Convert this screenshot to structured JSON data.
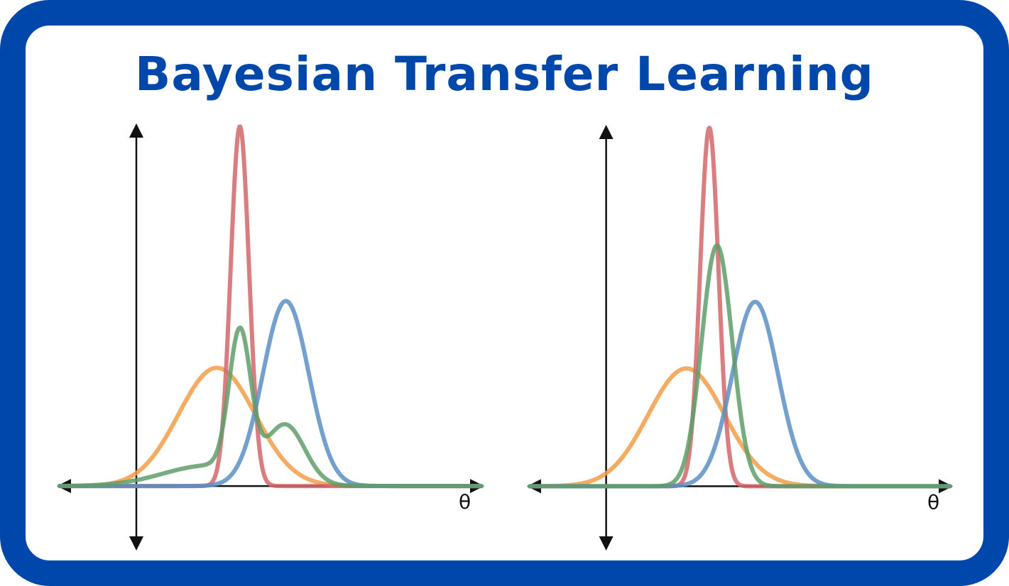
{
  "title": "Bayesian Transfer Learning",
  "colors": {
    "frame": "#0047AB",
    "title": "#0047AB",
    "orange": "#F39C45",
    "red": "#D4666A",
    "green": "#5E9E68",
    "blue": "#5A8FC4",
    "axis": "#111111"
  },
  "chart_data": [
    {
      "type": "line",
      "name": "left-panel",
      "xlabel": "θ",
      "xlim": [
        -1,
        4.5
      ],
      "ylim": [
        -0.6,
        3.5
      ],
      "series": [
        {
          "name": "orange",
          "color": "orange",
          "kind": "gaussian",
          "mu": 1.05,
          "sigma": 0.5,
          "amp": 1.15
        },
        {
          "name": "red",
          "color": "red",
          "kind": "gaussian",
          "mu": 1.35,
          "sigma": 0.12,
          "amp": 3.5
        },
        {
          "name": "blue",
          "color": "blue",
          "kind": "gaussian",
          "mu": 1.95,
          "sigma": 0.3,
          "amp": 1.8
        },
        {
          "name": "green",
          "color": "green",
          "kind": "mixture",
          "components": [
            {
              "mu": 0.95,
              "sigma": 0.6,
              "amp": 0.2
            },
            {
              "mu": 1.35,
              "sigma": 0.14,
              "amp": 1.35
            },
            {
              "mu": 1.95,
              "sigma": 0.25,
              "amp": 0.55
            }
          ]
        }
      ]
    },
    {
      "type": "line",
      "name": "right-panel",
      "xlabel": "θ",
      "xlim": [
        -1,
        4.5
      ],
      "ylim": [
        -0.6,
        3.5
      ],
      "series": [
        {
          "name": "orange",
          "color": "orange",
          "kind": "gaussian",
          "mu": 1.05,
          "sigma": 0.5,
          "amp": 1.15
        },
        {
          "name": "red",
          "color": "red",
          "kind": "gaussian",
          "mu": 1.35,
          "sigma": 0.12,
          "amp": 3.5
        },
        {
          "name": "blue",
          "color": "blue",
          "kind": "gaussian",
          "mu": 1.95,
          "sigma": 0.3,
          "amp": 1.8
        },
        {
          "name": "green",
          "color": "green",
          "kind": "gaussian",
          "mu": 1.45,
          "sigma": 0.2,
          "amp": 2.35
        }
      ]
    }
  ]
}
